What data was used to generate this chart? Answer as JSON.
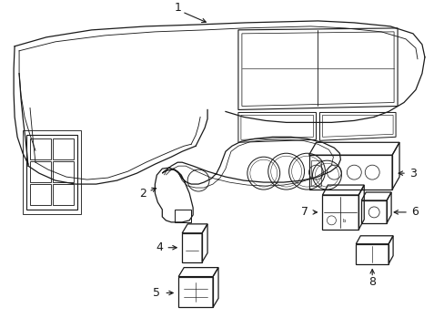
{
  "bg_color": "#ffffff",
  "line_color": "#1a1a1a",
  "lw": 0.8,
  "fig_width": 4.89,
  "fig_height": 3.6,
  "dpi": 100,
  "label_fontsize": 9
}
